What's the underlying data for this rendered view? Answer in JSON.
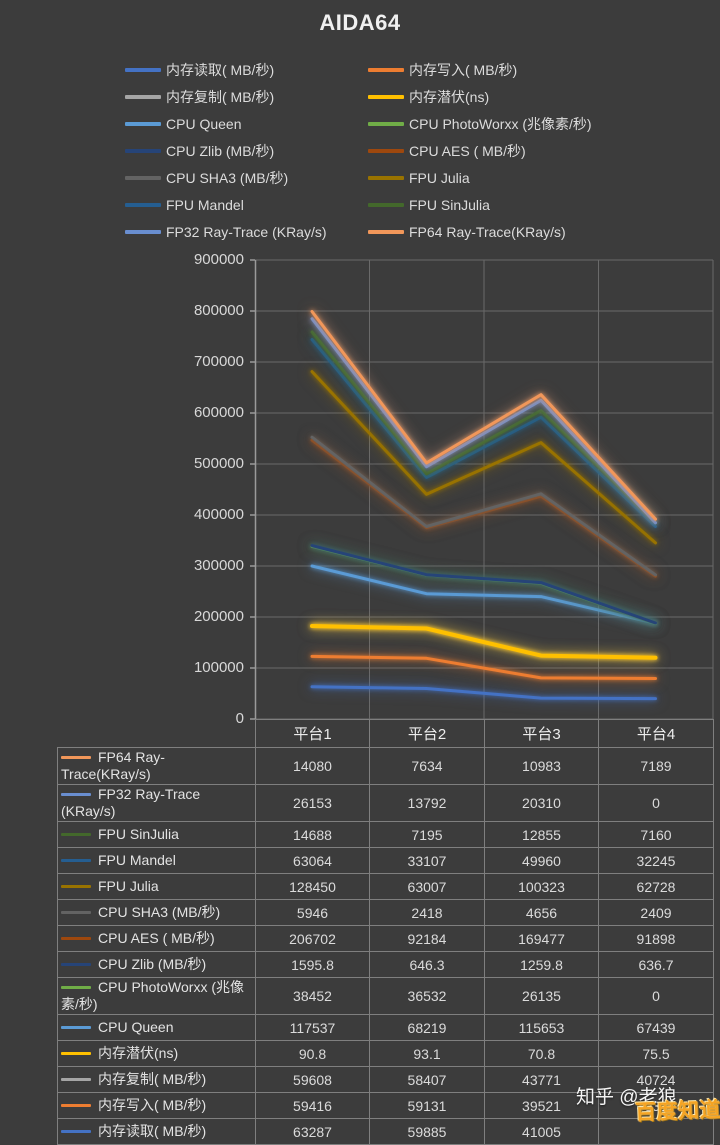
{
  "title": "AIDA64",
  "colors": {
    "background": "#3C3C3C",
    "grid": "#6A6A6A",
    "axis": "#9A9A9A",
    "table_border": "#7F7F7F",
    "text": "#DEDEDE"
  },
  "watermark": {
    "zhihu_text": "知乎 @老狼",
    "baidu_text": "百度知道",
    "baidu_color": "#F5A423"
  },
  "chart_data": {
    "type": "line",
    "stacked": true,
    "title": "AIDA64",
    "categories": [
      "平台1",
      "平台2",
      "平台3",
      "平台4"
    ],
    "xlabel": "",
    "ylabel": "",
    "ylim": [
      0,
      900000
    ],
    "yticks": [
      0,
      100000,
      200000,
      300000,
      400000,
      500000,
      600000,
      700000,
      800000,
      900000
    ],
    "grid": true,
    "legend_position": "top",
    "series": [
      {
        "name": "内存读取( MB/秒)",
        "color": "#4472C4",
        "values": [
          63287,
          59885,
          41005,
          40000
        ],
        "table_text": [
          "63287",
          "59885",
          "41005",
          ""
        ],
        "p4_hidden_by_watermark": true
      },
      {
        "name": "内存写入( MB/秒)",
        "color": "#ED7D31",
        "values": [
          59416,
          59131,
          39521,
          39324
        ]
      },
      {
        "name": "内存复制( MB/秒)",
        "color": "#A5A5A5",
        "values": [
          59608,
          58407,
          43771,
          40724
        ]
      },
      {
        "name": "内存潜伏(ns)",
        "color": "#FFC000",
        "values": [
          90.8,
          93.1,
          70.8,
          75.5
        ]
      },
      {
        "name": "CPU Queen",
        "color": "#5B9BD5",
        "values": [
          117537,
          68219,
          115653,
          67439
        ]
      },
      {
        "name": "CPU PhotoWorxx (兆像素/秒)",
        "color": "#70AD47",
        "values": [
          38452,
          36532,
          26135,
          0
        ]
      },
      {
        "name": "CPU Zlib (MB/秒)",
        "color": "#264478",
        "values": [
          1595.8,
          646.3,
          1259.8,
          636.7
        ]
      },
      {
        "name": "CPU AES ( MB/秒)",
        "color": "#9E480E",
        "values": [
          206702,
          92184,
          169477,
          91898
        ]
      },
      {
        "name": "CPU SHA3 (MB/秒)",
        "color": "#636363",
        "values": [
          5946,
          2418,
          4656,
          2409
        ]
      },
      {
        "name": "FPU Julia",
        "color": "#997300",
        "values": [
          128450,
          63007,
          100323,
          62728
        ]
      },
      {
        "name": "FPU Mandel",
        "color": "#255E91",
        "values": [
          63064,
          33107,
          49960,
          32245
        ]
      },
      {
        "name": "FPU SinJulia",
        "color": "#43682B",
        "values": [
          14688,
          7195,
          12855,
          7160
        ]
      },
      {
        "name": "FP32 Ray-Trace (KRay/s)",
        "color": "#698ED0",
        "values": [
          26153,
          13792,
          20310,
          0
        ]
      },
      {
        "name": "FP64 Ray-Trace(KRay/s)",
        "color": "#F1975A",
        "values": [
          14080,
          7634,
          10983,
          7189
        ]
      }
    ],
    "table_row_order": "series reversed (FP64 Ray-Trace first, 内存读取 last)",
    "notes": "Lines are drawn at cumulative stacked totals of the series below them. 内存读取 平台4 table cell is hidden by the 百度知道 watermark; 40000 is estimated from the plot."
  }
}
